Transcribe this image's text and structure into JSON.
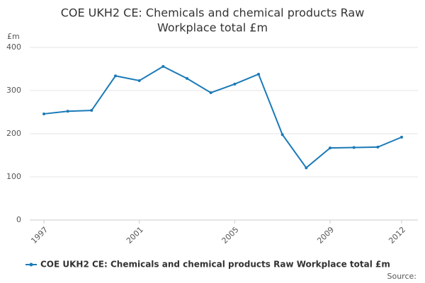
{
  "chart_data": {
    "type": "line",
    "title": [
      "COE UKH2 CE: Chemicals and chemical products Raw",
      "Workplace total £m"
    ],
    "y_label": "£m",
    "x": [
      1997,
      1998,
      1999,
      2000,
      2001,
      2002,
      2003,
      2004,
      2005,
      2006,
      2007,
      2008,
      2009,
      2010,
      2011,
      2012
    ],
    "series": [
      {
        "name": "COE UKH2 CE: Chemicals and chemical products Raw Workplace total £m",
        "color": "#1a7ab8",
        "values": [
          246,
          252,
          254,
          334,
          323,
          356,
          328,
          295,
          315,
          338,
          198,
          121,
          167,
          168,
          169,
          192
        ]
      }
    ],
    "xlim": [
      1997,
      2012
    ],
    "xticks": [
      1997,
      2001,
      2005,
      2009,
      2012
    ],
    "ylim": [
      0,
      400
    ],
    "yticks": [
      0,
      100,
      200,
      300,
      400
    ],
    "grid": true,
    "legend": "bottom",
    "source": "Source:"
  }
}
